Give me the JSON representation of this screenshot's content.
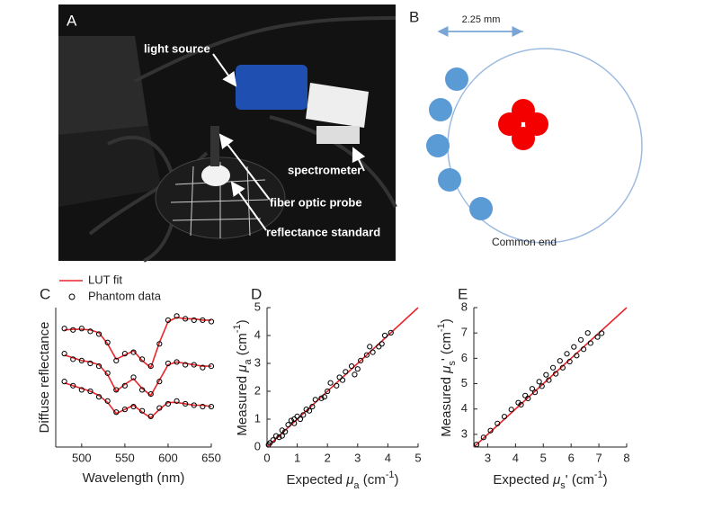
{
  "panel_a": {
    "label": "A",
    "annotations": [
      "light source",
      "spectrometer",
      "fiber optic probe",
      "reflectance standard"
    ]
  },
  "panel_b": {
    "label": "B",
    "scale": "2.25 mm",
    "caption": "Common end"
  },
  "chart_data": [
    {
      "type": "line",
      "panel": "C",
      "xlabel": "Wavelength (nm)",
      "ylabel": "Diffuse reflectance",
      "x": [
        480,
        490,
        500,
        510,
        520,
        530,
        540,
        550,
        560,
        570,
        580,
        590,
        600,
        610,
        620,
        630,
        640,
        650
      ],
      "xlim": [
        470,
        650
      ],
      "xticks": [
        500,
        550,
        600,
        650
      ],
      "ylim": [
        0,
        1
      ],
      "series": [
        {
          "name": "LUT fit",
          "color": "#e8262b",
          "style": "line",
          "values": [
            [
              0.84,
              0.845,
              0.845,
              0.84,
              0.82,
              0.74,
              0.63,
              0.66,
              0.69,
              0.62,
              0.57,
              0.75,
              0.9,
              0.93,
              0.92,
              0.92,
              0.91,
              0.91
            ],
            [
              0.66,
              0.64,
              0.62,
              0.61,
              0.59,
              0.52,
              0.4,
              0.45,
              0.49,
              0.42,
              0.37,
              0.48,
              0.59,
              0.61,
              0.6,
              0.59,
              0.58,
              0.58
            ],
            [
              0.46,
              0.44,
              0.42,
              0.4,
              0.37,
              0.32,
              0.24,
              0.27,
              0.3,
              0.25,
              0.21,
              0.27,
              0.32,
              0.32,
              0.31,
              0.3,
              0.3,
              0.29
            ]
          ]
        },
        {
          "name": "Phantom data",
          "color": "#000000",
          "style": "marker",
          "values": [
            [
              0.85,
              0.84,
              0.85,
              0.83,
              0.81,
              0.75,
              0.62,
              0.67,
              0.68,
              0.63,
              0.58,
              0.74,
              0.91,
              0.94,
              0.92,
              0.91,
              0.91,
              0.9
            ],
            [
              0.67,
              0.63,
              0.62,
              0.6,
              0.58,
              0.53,
              0.41,
              0.44,
              0.5,
              0.41,
              0.38,
              0.47,
              0.6,
              0.61,
              0.59,
              0.59,
              0.57,
              0.58
            ],
            [
              0.47,
              0.44,
              0.41,
              0.4,
              0.36,
              0.33,
              0.25,
              0.27,
              0.29,
              0.26,
              0.22,
              0.28,
              0.31,
              0.33,
              0.31,
              0.3,
              0.29,
              0.29
            ]
          ]
        }
      ]
    },
    {
      "type": "scatter",
      "panel": "D",
      "xlabel": [
        "Expected ",
        "μ",
        "a",
        " (cm",
        "-1",
        ")"
      ],
      "ylabel": [
        "Measured ",
        "μ",
        "a",
        " (cm",
        "-1",
        ")"
      ],
      "xlim": [
        0,
        5
      ],
      "ylim": [
        0,
        5
      ],
      "xticks": [
        0,
        1,
        2,
        3,
        4,
        5
      ],
      "yticks": [
        0,
        1,
        2,
        3,
        4,
        5
      ],
      "series": [
        {
          "color": "#e8262b",
          "style": "line",
          "x": [
            0,
            5
          ],
          "values": [
            0,
            5
          ]
        },
        {
          "color": "#000000",
          "style": "marker",
          "x": [
            0.05,
            0.1,
            0.2,
            0.3,
            0.4,
            0.5,
            0.6,
            0.7,
            0.8,
            0.9,
            1.0,
            1.1,
            1.2,
            1.3,
            1.5,
            1.6,
            1.8,
            2.0,
            2.1,
            2.3,
            2.5,
            2.6,
            2.8,
            3.0,
            3.1,
            3.3,
            3.5,
            3.7,
            3.9,
            4.1,
            0.5,
            0.9,
            1.4,
            1.9,
            2.4,
            2.9,
            3.4,
            3.8
          ],
          "values": [
            0.08,
            0.15,
            0.25,
            0.4,
            0.35,
            0.6,
            0.55,
            0.8,
            0.95,
            0.85,
            1.1,
            1.0,
            1.15,
            1.35,
            1.45,
            1.7,
            1.75,
            2.0,
            2.3,
            2.2,
            2.4,
            2.7,
            2.9,
            2.8,
            3.1,
            3.3,
            3.4,
            3.6,
            4.0,
            4.1,
            0.4,
            1.0,
            1.3,
            1.8,
            2.5,
            2.6,
            3.6,
            3.7
          ]
        }
      ]
    },
    {
      "type": "scatter",
      "panel": "E",
      "xlabel": [
        "Expected ",
        "μ",
        "s",
        "'",
        " (cm",
        "-1",
        ")"
      ],
      "ylabel": [
        "Measured ",
        "μ",
        "s",
        "'",
        " (cm",
        "-1",
        ")"
      ],
      "xlim": [
        2.5,
        8
      ],
      "ylim": [
        2.5,
        8
      ],
      "xticks": [
        3,
        4,
        5,
        6,
        7,
        8
      ],
      "yticks": [
        3,
        4,
        5,
        6,
        7,
        8
      ],
      "series": [
        {
          "color": "#e8262b",
          "style": "line",
          "x": [
            2.5,
            8
          ],
          "values": [
            2.5,
            8
          ]
        },
        {
          "color": "#000000",
          "style": "marker",
          "x": [
            2.6,
            2.85,
            3.1,
            3.35,
            3.6,
            3.85,
            4.1,
            4.35,
            4.6,
            4.85,
            5.1,
            5.35,
            5.6,
            5.85,
            6.1,
            6.35,
            6.6,
            4.2,
            4.45,
            4.7,
            4.95,
            5.2,
            5.45,
            5.7,
            5.95,
            6.2,
            6.45,
            6.7,
            6.95,
            7.1
          ],
          "values": [
            2.6,
            2.88,
            3.15,
            3.43,
            3.7,
            3.98,
            4.25,
            4.53,
            4.8,
            5.08,
            5.35,
            5.63,
            5.9,
            6.18,
            6.45,
            6.73,
            7.0,
            4.17,
            4.42,
            4.66,
            4.9,
            5.14,
            5.39,
            5.63,
            5.87,
            6.11,
            6.36,
            6.6,
            6.84,
            6.99
          ]
        }
      ]
    }
  ]
}
